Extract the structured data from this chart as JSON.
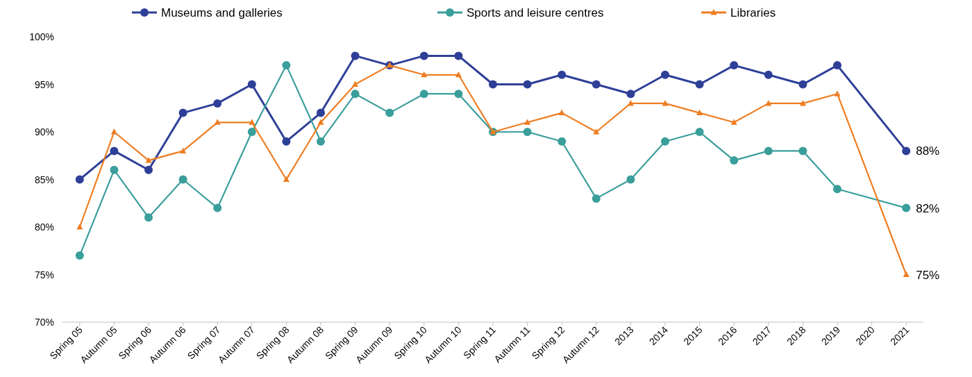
{
  "chart_data": {
    "type": "line",
    "categories": [
      "Spring 05",
      "Autumn 05",
      "Spring 06",
      "Autumn 06",
      "Spring 07",
      "Autumn 07",
      "Spring 08",
      "Autumn 08",
      "Spring 09",
      "Autumn 09",
      "Spring 10",
      "Autumn 10",
      "Spring 11",
      "Autumn 11",
      "Spring 12",
      "Autumn 12",
      "2013",
      "2014",
      "2015",
      "2016",
      "2017",
      "2018",
      "2019",
      "2020",
      "2021"
    ],
    "series": [
      {
        "name": "Museums and galleries",
        "color": "#2e3f98",
        "marker": "circle",
        "values": [
          85,
          88,
          86,
          92,
          93,
          95,
          89,
          92,
          98,
          97,
          98,
          98,
          95,
          95,
          96,
          95,
          94,
          96,
          95,
          97,
          96,
          95,
          97,
          null,
          88
        ],
        "value_labels": [
          null,
          null,
          null,
          null,
          null,
          null,
          null,
          null,
          null,
          null,
          null,
          null,
          null,
          null,
          null,
          null,
          null,
          null,
          null,
          null,
          null,
          null,
          null,
          null,
          "88%"
        ]
      },
      {
        "name": "Sports and leisure centres",
        "color": "#3a9e9b",
        "marker": "circle",
        "values": [
          77,
          86,
          81,
          85,
          82,
          90,
          97,
          89,
          94,
          92,
          94,
          94,
          90,
          90,
          89,
          83,
          85,
          89,
          90,
          87,
          88,
          88,
          84,
          null,
          82
        ],
        "value_labels": [
          null,
          null,
          null,
          null,
          null,
          null,
          null,
          null,
          null,
          null,
          null,
          null,
          null,
          null,
          null,
          null,
          null,
          null,
          null,
          null,
          null,
          null,
          null,
          null,
          "82%"
        ]
      },
      {
        "name": "Libraries",
        "color": "#ee7d22",
        "marker": "triangle",
        "values": [
          80,
          90,
          87,
          88,
          91,
          91,
          85,
          91,
          95,
          97,
          96,
          96,
          90,
          91,
          92,
          90,
          93,
          93,
          92,
          91,
          93,
          93,
          94,
          null,
          75
        ],
        "value_labels": [
          null,
          null,
          null,
          null,
          null,
          null,
          null,
          null,
          null,
          null,
          null,
          null,
          null,
          null,
          null,
          null,
          null,
          null,
          null,
          null,
          null,
          null,
          null,
          null,
          "75%"
        ]
      }
    ],
    "ylim": [
      70,
      100
    ],
    "yticks": [
      {
        "value": 70,
        "label": "70%"
      },
      {
        "value": 75,
        "label": "75%"
      },
      {
        "value": 80,
        "label": "80%"
      },
      {
        "value": 85,
        "label": "85%"
      },
      {
        "value": 90,
        "label": "90%"
      },
      {
        "value": 95,
        "label": "95%"
      },
      {
        "value": 100,
        "label": "100%"
      }
    ],
    "grid": false,
    "legend": "top",
    "line_style": "solid"
  }
}
